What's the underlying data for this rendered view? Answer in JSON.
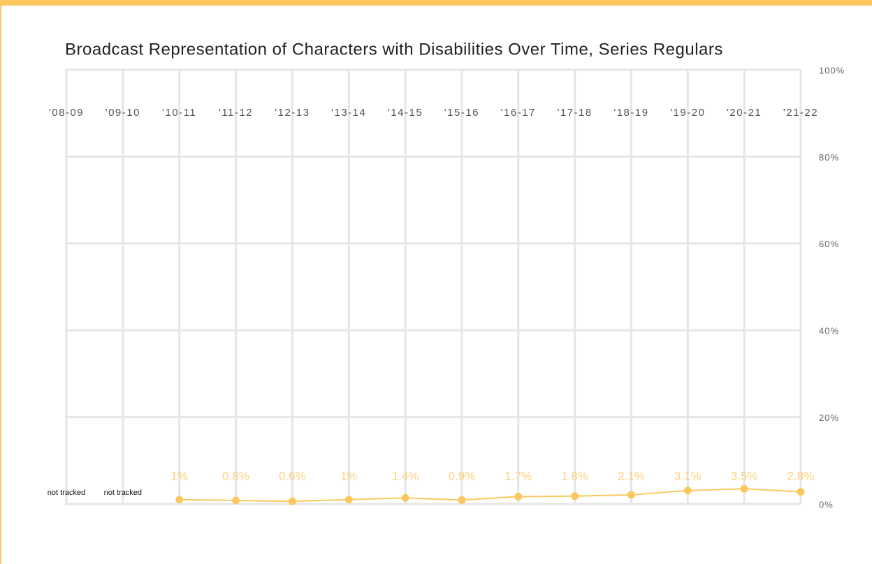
{
  "chart_data": {
    "type": "line",
    "title": "Broadcast Representation of Characters with Disabilities Over Time, Series Regulars",
    "categories": [
      "'08-09",
      "'09-10",
      "'10-11",
      "'11-12",
      "'12-13",
      "'13-14",
      "'14-15",
      "'15-16",
      "'16-17",
      "'17-18",
      "'18-19",
      "'19-20",
      "'20-21",
      "'21-22"
    ],
    "values": [
      null,
      null,
      1,
      0.8,
      0.6,
      1,
      1.4,
      0.9,
      1.7,
      1.8,
      2.1,
      3.1,
      3.5,
      2.8
    ],
    "value_labels": [
      null,
      null,
      "1%",
      "0.8%",
      "0.6%",
      "1%",
      "1.4%",
      "0.9%",
      "1.7%",
      "1.8%",
      "2.1%",
      "3.1%",
      "3.5%",
      "2.8%"
    ],
    "annotations": [
      "not tracked",
      "not tracked"
    ],
    "color": "#f9c95f",
    "ylim": [
      0,
      100
    ],
    "yticks": [
      {
        "value": 0,
        "label": "0%"
      },
      {
        "value": 20,
        "label": "20%"
      },
      {
        "value": 40,
        "label": "40%"
      },
      {
        "value": 60,
        "label": "60%"
      },
      {
        "value": 80,
        "label": "80%"
      },
      {
        "value": 100,
        "label": "100%"
      }
    ],
    "grid": true
  }
}
